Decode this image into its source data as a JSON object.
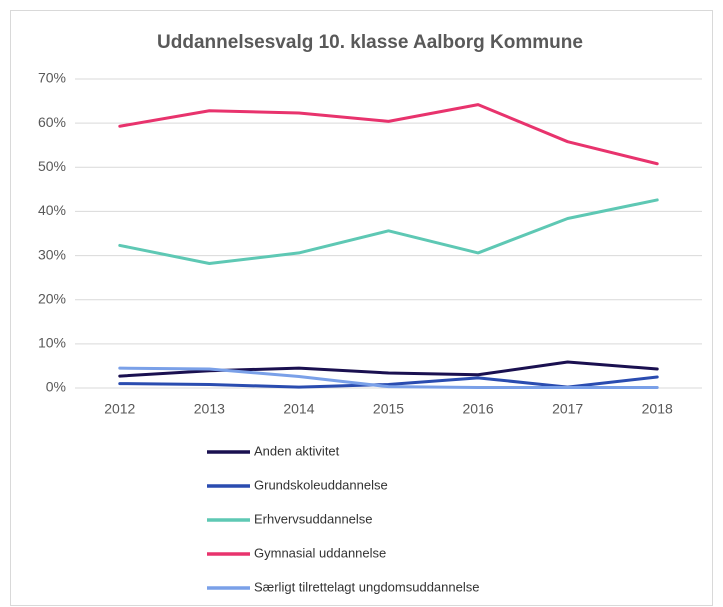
{
  "chart_data": {
    "type": "line",
    "title": "Uddannelsesvalg 10. klasse Aalborg Kommune",
    "categories": [
      "2012",
      "2013",
      "2014",
      "2015",
      "2016",
      "2017",
      "2018"
    ],
    "series": [
      {
        "name": "Anden aktivitet",
        "color": "#1a1050",
        "values": [
          2.7,
          3.9,
          4.5,
          3.4,
          3.0,
          5.9,
          4.3
        ]
      },
      {
        "name": "Grundskoleuddannelse",
        "color": "#2a4cb0",
        "values": [
          1.0,
          0.8,
          0.2,
          0.8,
          2.3,
          0.2,
          2.5
        ]
      },
      {
        "name": "Erhvervsuddannelse",
        "color": "#5ec8b4",
        "values": [
          32.3,
          28.2,
          30.6,
          35.6,
          30.6,
          38.4,
          42.6
        ]
      },
      {
        "name": "Gymnasial uddannelse",
        "color": "#e8336d",
        "values": [
          59.3,
          62.8,
          62.3,
          60.4,
          64.2,
          55.8,
          50.8
        ]
      },
      {
        "name": "Særligt tilrettelagt ungdomsuddannelse",
        "color": "#7aa0e8",
        "values": [
          4.5,
          4.3,
          2.6,
          0.3,
          0.1,
          0.1,
          0.1
        ]
      }
    ],
    "ylim": [
      0,
      70
    ],
    "yticks": [
      {
        "value": 0,
        "label": "0%"
      },
      {
        "value": 10,
        "label": "10%"
      },
      {
        "value": 20,
        "label": "20%"
      },
      {
        "value": 30,
        "label": "30%"
      },
      {
        "value": 40,
        "label": "40%"
      },
      {
        "value": 50,
        "label": "50%"
      },
      {
        "value": 60,
        "label": "60%"
      },
      {
        "value": 70,
        "label": "70%"
      }
    ],
    "grid": true,
    "legend": "bottom"
  }
}
